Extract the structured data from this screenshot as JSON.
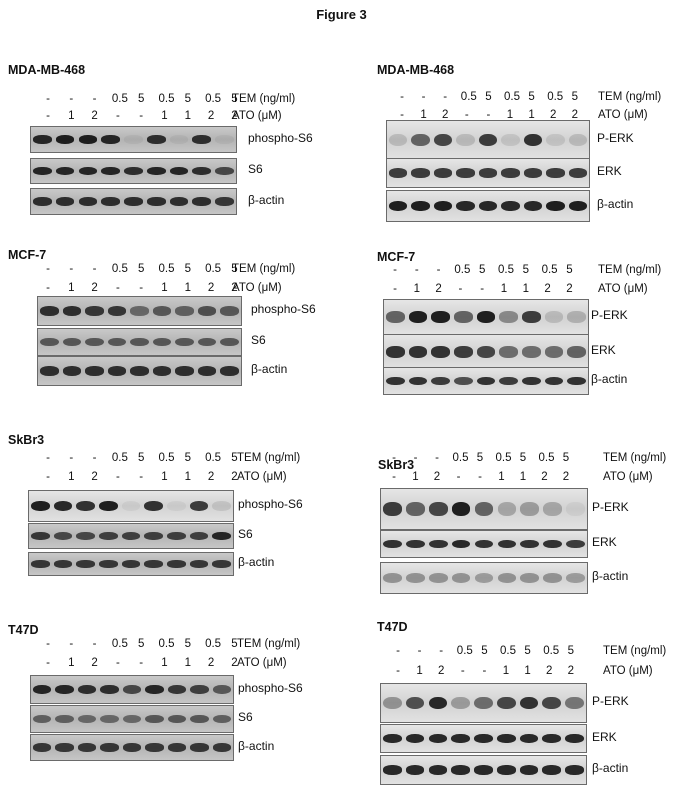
{
  "figure_title": "Figure 3",
  "condition_labels": {
    "tem": "TEM (ng/ml)",
    "ato": "ATO (μM)"
  },
  "lanes": {
    "tem": [
      "-",
      "-",
      "-",
      "0.5",
      "5",
      "0.5",
      "5",
      "0.5",
      "5"
    ],
    "ato": [
      "-",
      "1",
      "2",
      "-",
      "-",
      "1",
      "1",
      "2",
      "2"
    ]
  },
  "panels": [
    {
      "cell_line": "MDA-MB-468",
      "side": "left",
      "blots": [
        {
          "label": "phospho-S6",
          "intensity": [
            0.9,
            0.95,
            0.95,
            0.9,
            0.05,
            0.85,
            0.05,
            0.85,
            0.05
          ]
        },
        {
          "label": "S6",
          "intensity": [
            0.9,
            0.9,
            0.9,
            0.9,
            0.85,
            0.9,
            0.9,
            0.85,
            0.7
          ]
        },
        {
          "label": "β-actin",
          "intensity": [
            0.85,
            0.85,
            0.85,
            0.85,
            0.85,
            0.85,
            0.85,
            0.85,
            0.8
          ]
        }
      ]
    },
    {
      "cell_line": "MDA-MB-468",
      "side": "right",
      "blots": [
        {
          "label": "P-ERK",
          "intensity": [
            0.15,
            0.6,
            0.75,
            0.15,
            0.8,
            0.1,
            0.85,
            0.1,
            0.15
          ]
        },
        {
          "label": "ERK",
          "intensity": [
            0.8,
            0.8,
            0.8,
            0.8,
            0.8,
            0.8,
            0.8,
            0.8,
            0.8
          ]
        },
        {
          "label": "β-actin",
          "intensity": [
            0.95,
            0.95,
            0.95,
            0.9,
            0.9,
            0.9,
            0.9,
            0.95,
            0.95
          ]
        }
      ]
    },
    {
      "cell_line": "MCF-7",
      "side": "left",
      "blots": [
        {
          "label": "phospho-S6",
          "intensity": [
            0.85,
            0.85,
            0.8,
            0.8,
            0.5,
            0.6,
            0.55,
            0.65,
            0.6
          ]
        },
        {
          "label": "S6",
          "intensity": [
            0.6,
            0.6,
            0.6,
            0.6,
            0.6,
            0.6,
            0.6,
            0.6,
            0.6
          ]
        },
        {
          "label": "β-actin",
          "intensity": [
            0.85,
            0.85,
            0.85,
            0.85,
            0.85,
            0.85,
            0.85,
            0.85,
            0.85
          ]
        }
      ]
    },
    {
      "cell_line": "MCF-7",
      "side": "right",
      "blots": [
        {
          "label": "P-ERK",
          "intensity": [
            0.6,
            0.95,
            0.95,
            0.6,
            0.95,
            0.4,
            0.8,
            0.15,
            0.2
          ]
        },
        {
          "label": "ERK",
          "intensity": [
            0.85,
            0.85,
            0.85,
            0.8,
            0.75,
            0.55,
            0.55,
            0.55,
            0.6
          ]
        },
        {
          "label": "β-actin",
          "intensity": [
            0.85,
            0.85,
            0.8,
            0.7,
            0.85,
            0.8,
            0.85,
            0.85,
            0.85
          ]
        }
      ]
    },
    {
      "cell_line": "SkBr3",
      "side": "left",
      "blots": [
        {
          "label": "phospho-S6",
          "intensity": [
            0.95,
            0.9,
            0.85,
            0.95,
            0.05,
            0.85,
            0.05,
            0.8,
            0.1
          ]
        },
        {
          "label": "S6",
          "intensity": [
            0.8,
            0.7,
            0.7,
            0.75,
            0.75,
            0.75,
            0.75,
            0.75,
            0.9
          ]
        },
        {
          "label": "β-actin",
          "intensity": [
            0.8,
            0.8,
            0.8,
            0.8,
            0.8,
            0.8,
            0.8,
            0.8,
            0.8
          ]
        }
      ]
    },
    {
      "cell_line": "SkBr3",
      "side": "right",
      "blots": [
        {
          "label": "P-ERK",
          "intensity": [
            0.8,
            0.6,
            0.75,
            0.95,
            0.6,
            0.25,
            0.3,
            0.25,
            0.05
          ]
        },
        {
          "label": "ERK",
          "intensity": [
            0.85,
            0.85,
            0.85,
            0.9,
            0.85,
            0.85,
            0.85,
            0.85,
            0.8
          ]
        },
        {
          "label": "β-actin",
          "intensity": [
            0.35,
            0.35,
            0.35,
            0.35,
            0.3,
            0.35,
            0.35,
            0.35,
            0.3
          ]
        }
      ]
    },
    {
      "cell_line": "T47D",
      "side": "left",
      "blots": [
        {
          "label": "phospho-S6",
          "intensity": [
            0.9,
            0.9,
            0.85,
            0.85,
            0.7,
            0.9,
            0.8,
            0.75,
            0.6
          ]
        },
        {
          "label": "S6",
          "intensity": [
            0.55,
            0.55,
            0.5,
            0.5,
            0.5,
            0.6,
            0.6,
            0.6,
            0.55
          ]
        },
        {
          "label": "β-actin",
          "intensity": [
            0.8,
            0.8,
            0.8,
            0.8,
            0.8,
            0.8,
            0.8,
            0.8,
            0.8
          ]
        }
      ]
    },
    {
      "cell_line": "T47D",
      "side": "right",
      "blots": [
        {
          "label": "P-ERK",
          "intensity": [
            0.35,
            0.7,
            0.9,
            0.3,
            0.55,
            0.75,
            0.85,
            0.75,
            0.5
          ]
        },
        {
          "label": "ERK",
          "intensity": [
            0.9,
            0.9,
            0.9,
            0.9,
            0.9,
            0.9,
            0.9,
            0.9,
            0.9
          ]
        },
        {
          "label": "β-actin",
          "intensity": [
            0.9,
            0.9,
            0.9,
            0.9,
            0.9,
            0.9,
            0.9,
            0.9,
            0.9
          ]
        }
      ]
    }
  ]
}
